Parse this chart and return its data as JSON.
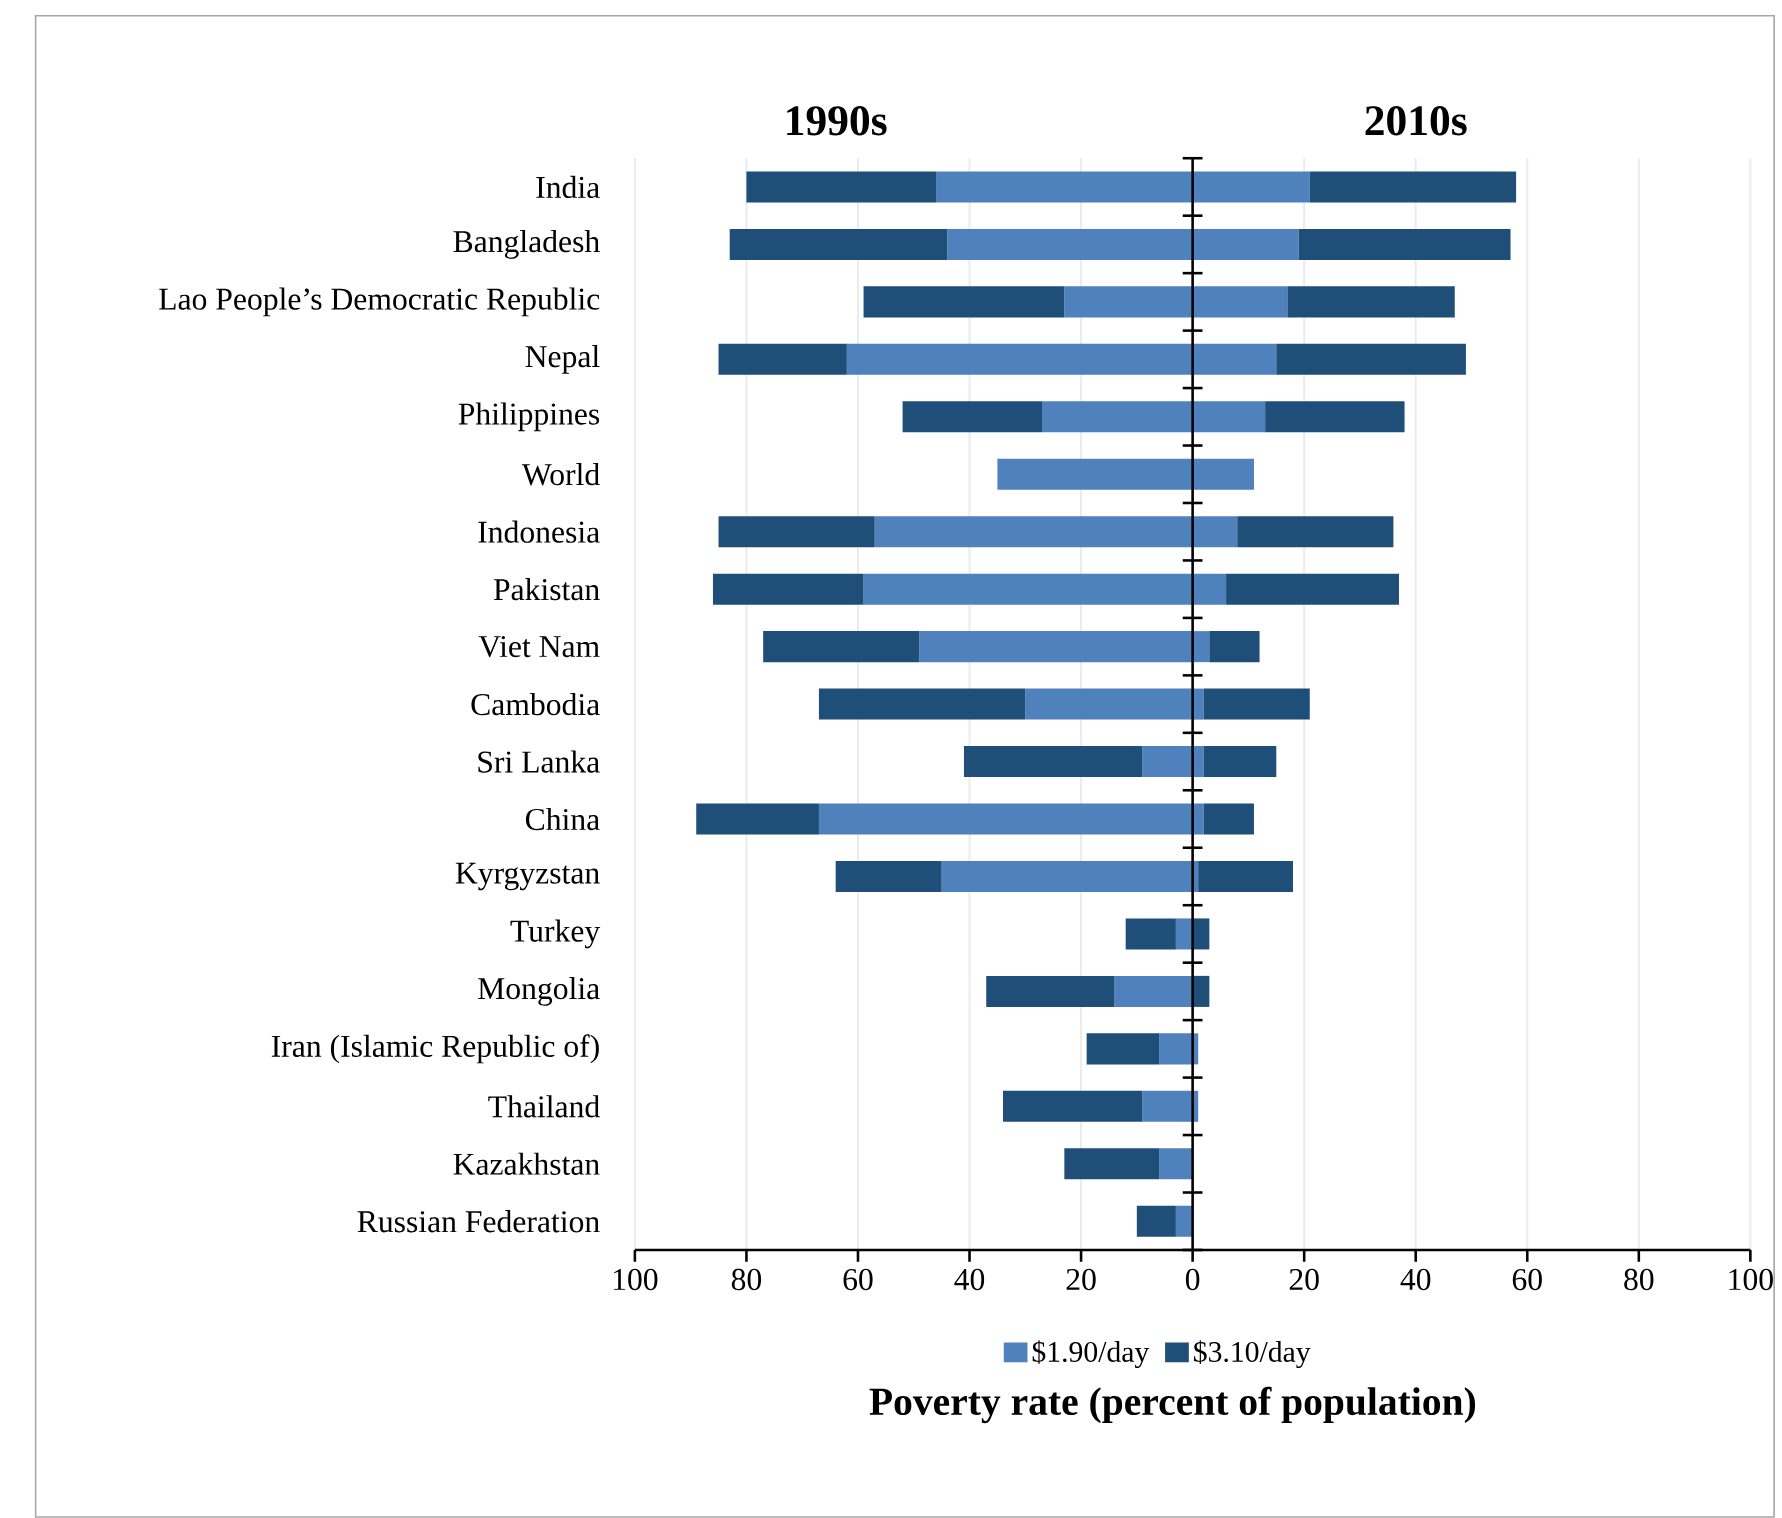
{
  "chart_data": {
    "type": "bar",
    "orientation": "horizontal",
    "stacked": true,
    "categories": [
      "India",
      "Bangladesh",
      "Lao People’s Democratic Republic",
      "Nepal",
      "Philippines",
      "World",
      "Indonesia",
      "Pakistan",
      "Viet Nam",
      "Cambodia",
      "Sri Lanka",
      "China",
      "Kyrgyzstan",
      "Turkey",
      "Mongolia",
      "Iran (Islamic Republic of)",
      "Thailand",
      "Kazakhstan",
      "Russian Federation"
    ],
    "series": [
      {
        "name": "$1.90/day",
        "color": "#4f81bd",
        "values": [
          -46,
          -44,
          -23,
          -62,
          -27,
          -35,
          -57,
          -59,
          -49,
          -30,
          -9,
          -67,
          -45,
          -3,
          -14,
          -6,
          -9,
          -6,
          -3
        ]
      },
      {
        "name": "$3.10/day",
        "color": "#1f4e79",
        "values": [
          -34,
          -39,
          -36,
          -23,
          -25,
          null,
          -28,
          -27,
          -28,
          -37,
          -32,
          -22,
          -19,
          -9,
          -23,
          -13,
          -25,
          -17,
          -7
        ]
      },
      {
        "color": "#4f81bd",
        "values": [
          21,
          19,
          17,
          15,
          13,
          11,
          8,
          6,
          3,
          2,
          2,
          2,
          1,
          0,
          0,
          1,
          1,
          0,
          0
        ]
      },
      {
        "color": "#1f4e79",
        "values": [
          37,
          38,
          30,
          34,
          25,
          null,
          28,
          31,
          9,
          19,
          13,
          9,
          17,
          3,
          3,
          null,
          null,
          null,
          null
        ]
      }
    ],
    "xlim": [
      -100,
      100
    ],
    "xticks": [
      {
        "value": -100,
        "label": "100"
      },
      {
        "value": -80,
        "label": "80"
      },
      {
        "value": -60,
        "label": "60"
      },
      {
        "value": -40,
        "label": "40"
      },
      {
        "value": -20,
        "label": "20"
      },
      0,
      20,
      40,
      60,
      80,
      100
    ],
    "xlabel": "Poverty rate (percent of population)",
    "annotations": [
      "1990s",
      "2010s"
    ],
    "grid": "x",
    "legend": "bottom"
  }
}
